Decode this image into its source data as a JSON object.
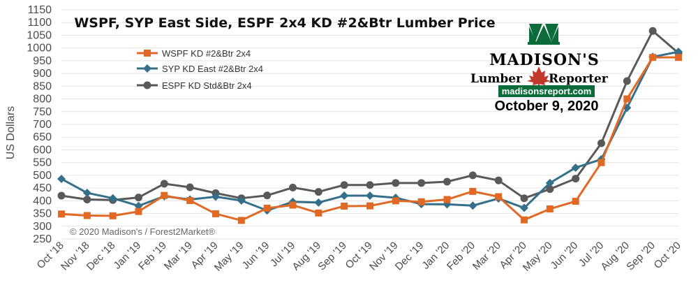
{
  "chart_data": {
    "type": "line",
    "title": "WSPF, SYP East Side, ESPF 2x4 KD #2&Btr Lumber Price",
    "ylabel": "US Dollars",
    "xlabel": "",
    "ylim": [
      250,
      1150
    ],
    "yticks": [
      250,
      300,
      350,
      400,
      450,
      500,
      550,
      600,
      650,
      700,
      750,
      800,
      850,
      900,
      950,
      1000,
      1050,
      1100,
      1150
    ],
    "grid": true,
    "legend_position": "top-left",
    "categories": [
      "Oct '18",
      "Nov '18",
      "Dec '18",
      "Jan '19",
      "Feb '19",
      "Mar '19",
      "Apr '19",
      "May '19",
      "Jun '19",
      "Jul '19",
      "Aug '19",
      "Sep '19",
      "Oct '19",
      "Nov '19",
      "Dec '19",
      "Jan '20",
      "Feb '20",
      "Mar '20",
      "Apr '20",
      "May '20",
      "Jun '20",
      "Jul '20",
      "Aug '20",
      "Sep '20",
      "Oct '20"
    ],
    "series": [
      {
        "name": "WSPF KD #2&Btr 2x4",
        "color": "#e06a25",
        "marker": "square",
        "values": [
          348,
          342,
          341,
          358,
          421,
          401,
          349,
          323,
          371,
          383,
          352,
          379,
          380,
          400,
          396,
          405,
          437,
          416,
          325,
          368,
          398,
          550,
          800,
          963,
          963
        ]
      },
      {
        "name": "SYP KD East #2&Btr 2x4",
        "color": "#35708a",
        "marker": "diamond",
        "values": [
          486,
          431,
          410,
          380,
          418,
          405,
          416,
          401,
          362,
          396,
          393,
          420,
          420,
          412,
          387,
          386,
          381,
          409,
          372,
          470,
          530,
          563,
          765,
          965,
          985
        ]
      },
      {
        "name": "ESPF KD Std&Btr 2x4",
        "color": "#595959",
        "marker": "circle",
        "values": [
          420,
          405,
          403,
          413,
          467,
          453,
          430,
          410,
          421,
          452,
          435,
          462,
          462,
          470,
          470,
          475,
          500,
          480,
          410,
          446,
          487,
          626,
          870,
          1067,
          980
        ]
      }
    ]
  },
  "copyright": "© 2020 Madison's / Forest2Market®",
  "logo": {
    "name": "MADISON'S",
    "tagline_left": "Lumber",
    "tagline_right": "Reporter",
    "url": "madisonsreport.com",
    "date": "October 9, 2020",
    "colors": {
      "green": "#0b6b3a",
      "red": "#c0392b"
    }
  }
}
